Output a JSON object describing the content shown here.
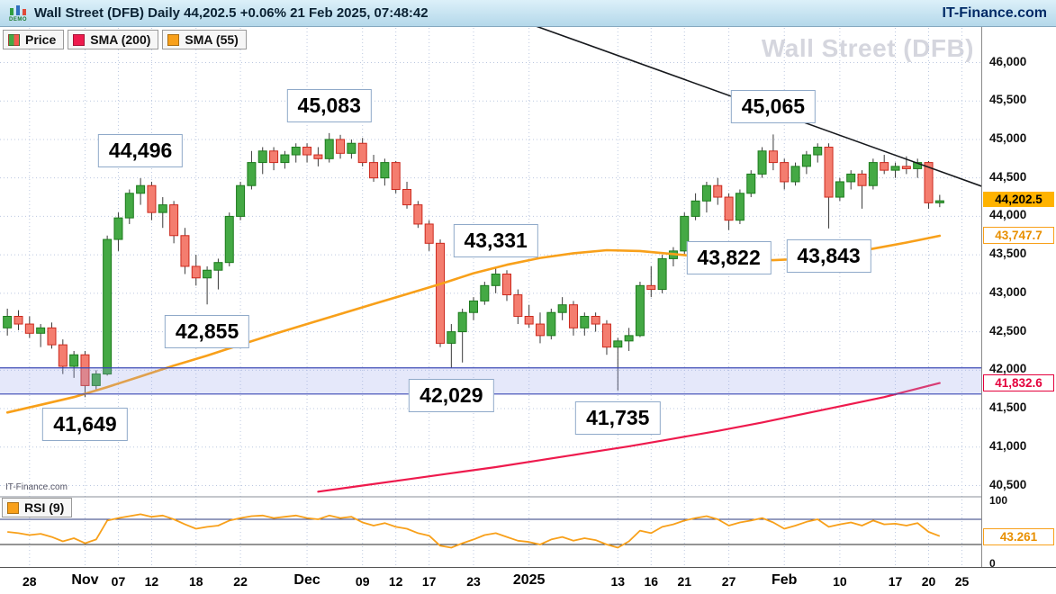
{
  "header": {
    "logo_label": "DEMO",
    "title": "Wall Street (DFB) Daily 44,202.5 +0.06% 21 Feb 2025, 07:48:42",
    "brand": "IT-Finance.com"
  },
  "legend": {
    "price": "Price",
    "sma200": "SMA (200)",
    "sma55": "SMA (55)",
    "rsi": "RSI (9)"
  },
  "watermark": "Wall Street (DFB)",
  "footer_brand": "IT-Finance.com",
  "colors": {
    "up": "#44a944",
    "up_stroke": "#1c7a1c",
    "down": "#f47d6f",
    "down_stroke": "#cc2a1e",
    "sma200": "#ee1a4d",
    "sma55": "#f8a01a",
    "grid": "#bcc8e0",
    "band_fill": "rgba(150,163,235,0.25)",
    "band_edge": "#3b49b5",
    "trendline": "#17191d"
  },
  "y_axis": {
    "ticks": [
      "46,000",
      "45,500",
      "45,000",
      "44,500",
      "44,000",
      "43,500",
      "43,000",
      "42,500",
      "42,000",
      "41,500",
      "41,000",
      "40,500"
    ],
    "tick_values": [
      46000,
      45500,
      45000,
      44500,
      44000,
      43500,
      43000,
      42500,
      42000,
      41500,
      41000,
      40500
    ],
    "current": {
      "label": "44,202.5",
      "value": 44202.5
    },
    "sma55": {
      "label": "43,747.7",
      "value": 43747.7
    },
    "sma200": {
      "label": "41,832.6",
      "value": 41832.6
    }
  },
  "rsi_axis": {
    "top": "100",
    "bottom": "0",
    "current": {
      "label": "43.261",
      "value": 43.261
    }
  },
  "x_axis": {
    "ticks": [
      {
        "label": "28",
        "idx": 2,
        "strong": false
      },
      {
        "label": "Nov",
        "idx": 7,
        "strong": true
      },
      {
        "label": "07",
        "idx": 10,
        "strong": false
      },
      {
        "label": "12",
        "idx": 13,
        "strong": false
      },
      {
        "label": "18",
        "idx": 17,
        "strong": false
      },
      {
        "label": "22",
        "idx": 21,
        "strong": false
      },
      {
        "label": "Dec",
        "idx": 27,
        "strong": true
      },
      {
        "label": "09",
        "idx": 32,
        "strong": false
      },
      {
        "label": "12",
        "idx": 35,
        "strong": false
      },
      {
        "label": "17",
        "idx": 38,
        "strong": false
      },
      {
        "label": "23",
        "idx": 42,
        "strong": false
      },
      {
        "label": "2025",
        "idx": 47,
        "strong": true
      },
      {
        "label": "13",
        "idx": 55,
        "strong": false
      },
      {
        "label": "16",
        "idx": 58,
        "strong": false
      },
      {
        "label": "21",
        "idx": 61,
        "strong": false
      },
      {
        "label": "27",
        "idx": 65,
        "strong": false
      },
      {
        "label": "Feb",
        "idx": 70,
        "strong": true
      },
      {
        "label": "10",
        "idx": 75,
        "strong": false
      },
      {
        "label": "17",
        "idx": 80,
        "strong": false
      },
      {
        "label": "20",
        "idx": 83,
        "strong": false
      },
      {
        "label": "25",
        "idx": 86,
        "strong": false
      }
    ]
  },
  "annotations": [
    {
      "label": "44,496",
      "idx": 12,
      "price": 44496,
      "side": "above"
    },
    {
      "label": "45,083",
      "idx": 29,
      "price": 45083,
      "side": "above"
    },
    {
      "label": "43,331",
      "idx": 44,
      "price": 43331,
      "side": "above"
    },
    {
      "label": "45,065",
      "idx": 69,
      "price": 45065,
      "side": "above"
    },
    {
      "label": "41,649",
      "idx": 7,
      "price": 41649,
      "side": "below"
    },
    {
      "label": "42,855",
      "idx": 18,
      "price": 42855,
      "side": "below"
    },
    {
      "label": "42,029",
      "idx": 40,
      "price": 42029,
      "side": "below"
    },
    {
      "label": "41,735",
      "idx": 55,
      "price": 41735,
      "side": "below"
    },
    {
      "label": "43,822",
      "idx": 65,
      "price": 43822,
      "side": "below"
    },
    {
      "label": "43,843",
      "idx": 74,
      "price": 43843,
      "side": "below"
    }
  ],
  "chart_data": {
    "type": "candlestick",
    "title": "Wall Street (DFB) Daily",
    "last_price": 44202.5,
    "change_pct": "+0.06%",
    "timestamp": "21 Feb 2025, 07:48:42",
    "price_axis_range": [
      40500,
      46000
    ],
    "indicators": [
      "SMA (200)",
      "SMA (55)",
      "RSI (9)"
    ],
    "support_zone": [
      41690,
      42030
    ],
    "trendline": {
      "from_idx": 47.5,
      "from_price": 46480,
      "to_idx": 88,
      "to_price": 44380
    },
    "candles": [
      [
        42550,
        42800,
        42450,
        42700
      ],
      [
        42700,
        42780,
        42520,
        42600
      ],
      [
        42600,
        42700,
        42420,
        42480
      ],
      [
        42480,
        42600,
        42300,
        42550
      ],
      [
        42550,
        42620,
        42280,
        42330
      ],
      [
        42330,
        42400,
        41950,
        42050
      ],
      [
        42050,
        42250,
        41900,
        42200
      ],
      [
        42200,
        42250,
        41649,
        41800
      ],
      [
        41800,
        42000,
        41730,
        41950
      ],
      [
        41950,
        43750,
        41930,
        43700
      ],
      [
        43700,
        44050,
        43550,
        43980
      ],
      [
        43980,
        44350,
        43900,
        44300
      ],
      [
        44300,
        44496,
        44150,
        44400
      ],
      [
        44400,
        44450,
        43950,
        44050
      ],
      [
        44050,
        44250,
        43850,
        44150
      ],
      [
        44150,
        44200,
        43650,
        43750
      ],
      [
        43750,
        43850,
        43250,
        43350
      ],
      [
        43350,
        43500,
        43100,
        43200
      ],
      [
        43200,
        43350,
        42855,
        43300
      ],
      [
        43300,
        43450,
        43050,
        43400
      ],
      [
        43400,
        44050,
        43350,
        44000
      ],
      [
        44000,
        44450,
        43950,
        44400
      ],
      [
        44400,
        44850,
        44350,
        44700
      ],
      [
        44700,
        44900,
        44550,
        44850
      ],
      [
        44850,
        44900,
        44600,
        44700
      ],
      [
        44700,
        44850,
        44620,
        44800
      ],
      [
        44800,
        44950,
        44700,
        44900
      ],
      [
        44900,
        44950,
        44700,
        44800
      ],
      [
        44800,
        44900,
        44650,
        44750
      ],
      [
        44750,
        45083,
        44700,
        45000
      ],
      [
        45000,
        45060,
        44750,
        44820
      ],
      [
        44820,
        45000,
        44750,
        44950
      ],
      [
        44950,
        45020,
        44650,
        44700
      ],
      [
        44700,
        44800,
        44450,
        44500
      ],
      [
        44500,
        44750,
        44400,
        44700
      ],
      [
        44700,
        44720,
        44300,
        44350
      ],
      [
        44350,
        44450,
        44100,
        44150
      ],
      [
        44150,
        44200,
        43850,
        43900
      ],
      [
        43900,
        43950,
        43550,
        43650
      ],
      [
        43650,
        43700,
        42300,
        42350
      ],
      [
        42350,
        42600,
        42029,
        42500
      ],
      [
        42500,
        42800,
        42100,
        42750
      ],
      [
        42750,
        42950,
        42650,
        42900
      ],
      [
        42900,
        43150,
        42850,
        43100
      ],
      [
        43100,
        43331,
        43000,
        43250
      ],
      [
        43250,
        43300,
        42900,
        42980
      ],
      [
        42980,
        43050,
        42600,
        42700
      ],
      [
        42700,
        42850,
        42550,
        42600
      ],
      [
        42600,
        42750,
        42350,
        42450
      ],
      [
        42450,
        42800,
        42400,
        42750
      ],
      [
        42750,
        42950,
        42650,
        42850
      ],
      [
        42850,
        42900,
        42450,
        42550
      ],
      [
        42550,
        42750,
        42450,
        42700
      ],
      [
        42700,
        42750,
        42500,
        42600
      ],
      [
        42600,
        42650,
        42200,
        42300
      ],
      [
        42300,
        42420,
        41735,
        42380
      ],
      [
        42380,
        42550,
        42250,
        42450
      ],
      [
        42450,
        43150,
        42430,
        43100
      ],
      [
        43100,
        43350,
        42950,
        43050
      ],
      [
        43050,
        43500,
        43000,
        43450
      ],
      [
        43450,
        43600,
        43350,
        43550
      ],
      [
        43550,
        44050,
        43500,
        44000
      ],
      [
        44000,
        44300,
        43950,
        44200
      ],
      [
        44200,
        44450,
        44050,
        44400
      ],
      [
        44400,
        44500,
        44150,
        44250
      ],
      [
        44250,
        44300,
        43822,
        43950
      ],
      [
        43950,
        44350,
        43900,
        44300
      ],
      [
        44300,
        44600,
        44250,
        44550
      ],
      [
        44550,
        44900,
        44500,
        44850
      ],
      [
        44850,
        45065,
        44600,
        44700
      ],
      [
        44700,
        44750,
        44350,
        44450
      ],
      [
        44450,
        44700,
        44400,
        44650
      ],
      [
        44650,
        44850,
        44550,
        44800
      ],
      [
        44800,
        44950,
        44700,
        44900
      ],
      [
        44900,
        44950,
        43843,
        44250
      ],
      [
        44250,
        44500,
        44200,
        44450
      ],
      [
        44450,
        44600,
        44350,
        44550
      ],
      [
        44550,
        44600,
        44100,
        44400
      ],
      [
        44400,
        44750,
        44350,
        44700
      ],
      [
        44700,
        44800,
        44550,
        44600
      ],
      [
        44600,
        44700,
        44500,
        44650
      ],
      [
        44650,
        44780,
        44550,
        44620
      ],
      [
        44620,
        44750,
        44500,
        44700
      ],
      [
        44700,
        44720,
        44100,
        44176
      ],
      [
        44176,
        44280,
        44120,
        44202.5
      ]
    ],
    "sma55_points": [
      [
        0,
        41450
      ],
      [
        3,
        41550
      ],
      [
        6,
        41650
      ],
      [
        9,
        41780
      ],
      [
        12,
        41920
      ],
      [
        15,
        42060
      ],
      [
        18,
        42190
      ],
      [
        21,
        42330
      ],
      [
        24,
        42470
      ],
      [
        27,
        42600
      ],
      [
        30,
        42730
      ],
      [
        33,
        42860
      ],
      [
        36,
        42990
      ],
      [
        39,
        43120
      ],
      [
        42,
        43260
      ],
      [
        45,
        43370
      ],
      [
        48,
        43460
      ],
      [
        51,
        43520
      ],
      [
        54,
        43560
      ],
      [
        57,
        43550
      ],
      [
        60,
        43510
      ],
      [
        63,
        43470
      ],
      [
        66,
        43440
      ],
      [
        69,
        43430
      ],
      [
        72,
        43450
      ],
      [
        75,
        43510
      ],
      [
        78,
        43580
      ],
      [
        81,
        43660
      ],
      [
        84,
        43747.7
      ]
    ],
    "sma200_points": [
      [
        28,
        40420
      ],
      [
        32,
        40500
      ],
      [
        36,
        40580
      ],
      [
        40,
        40660
      ],
      [
        44,
        40740
      ],
      [
        48,
        40830
      ],
      [
        52,
        40920
      ],
      [
        56,
        41010
      ],
      [
        60,
        41110
      ],
      [
        64,
        41210
      ],
      [
        68,
        41320
      ],
      [
        72,
        41440
      ],
      [
        76,
        41560
      ],
      [
        79,
        41650
      ],
      [
        82,
        41760
      ],
      [
        84,
        41832.6
      ]
    ],
    "rsi_period": 9,
    "rsi_ref_lines": [
      70,
      30
    ],
    "rsi_last": 43.261,
    "rsi": [
      50,
      48,
      45,
      47,
      42,
      35,
      40,
      32,
      38,
      68,
      72,
      75,
      78,
      74,
      76,
      70,
      62,
      55,
      58,
      60,
      68,
      72,
      75,
      76,
      72,
      74,
      76,
      72,
      70,
      76,
      72,
      74,
      65,
      60,
      64,
      58,
      55,
      48,
      44,
      28,
      25,
      32,
      38,
      45,
      48,
      42,
      36,
      34,
      30,
      38,
      42,
      36,
      40,
      37,
      30,
      25,
      35,
      52,
      48,
      58,
      62,
      68,
      72,
      75,
      70,
      60,
      65,
      68,
      72,
      65,
      55,
      60,
      66,
      70,
      58,
      62,
      65,
      60,
      68,
      62,
      63,
      60,
      64,
      50,
      43.261
    ]
  }
}
